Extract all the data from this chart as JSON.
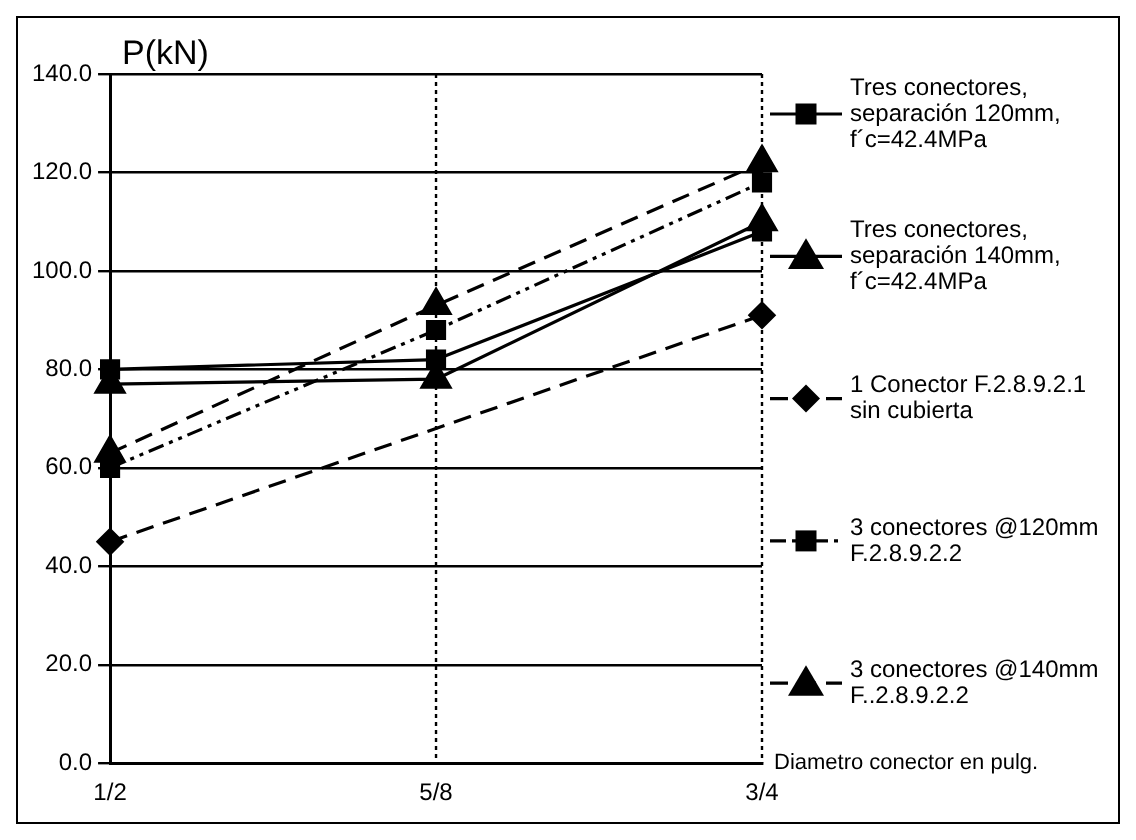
{
  "chart_data": {
    "type": "line",
    "ylabel": "P(kN)",
    "xlabel": "Diametro conector en pulg.",
    "categories": [
      "1/2",
      "5/8",
      "3/4"
    ],
    "series": [
      {
        "name": "Tres conectores, separación 120mm, f´c=42.4MPa",
        "color": "#000000",
        "values": [
          80,
          82,
          108
        ],
        "marker": "square",
        "line_style": "solid"
      },
      {
        "name": "Tres conectores, separación 140mm, f´c=42.4MPa",
        "color": "#000000",
        "values": [
          77,
          78,
          110
        ],
        "marker": "triangle",
        "line_style": "solid"
      },
      {
        "name": "1 Conector F.2.8.9.2.1 sin cubierta",
        "color": "#000000",
        "values": [
          45,
          null,
          91
        ],
        "marker": "diamond",
        "line_style": "dashed"
      },
      {
        "name": "3 conectores @120mm F.2.8.9.2.2",
        "color": "#000000",
        "values": [
          60,
          88,
          118
        ],
        "marker": "square",
        "line_style": "dotted"
      },
      {
        "name": "3 conectores @140mm F..2.8.9.2.2",
        "color": "#000000",
        "values": [
          63,
          93,
          122
        ],
        "marker": "triangle",
        "line_style": "dashed"
      }
    ],
    "ylim": [
      0,
      140
    ],
    "yticks": [
      {
        "value": 0,
        "label": "0.0"
      },
      {
        "value": 20,
        "label": "20.0"
      },
      {
        "value": 40,
        "label": "40.0"
      },
      {
        "value": 60,
        "label": "60.0"
      },
      {
        "value": 80,
        "label": "80.0"
      },
      {
        "value": 100,
        "label": "100.0"
      },
      {
        "value": 120,
        "label": "120.0"
      },
      {
        "value": 140,
        "label": "140.0"
      }
    ],
    "ref_lines": [
      {
        "axis": "x",
        "value": "5/8",
        "line_style": "dotted"
      },
      {
        "axis": "x",
        "value": "3/4",
        "line_style": "dotted"
      }
    ],
    "grid": "y",
    "legend": "right"
  }
}
